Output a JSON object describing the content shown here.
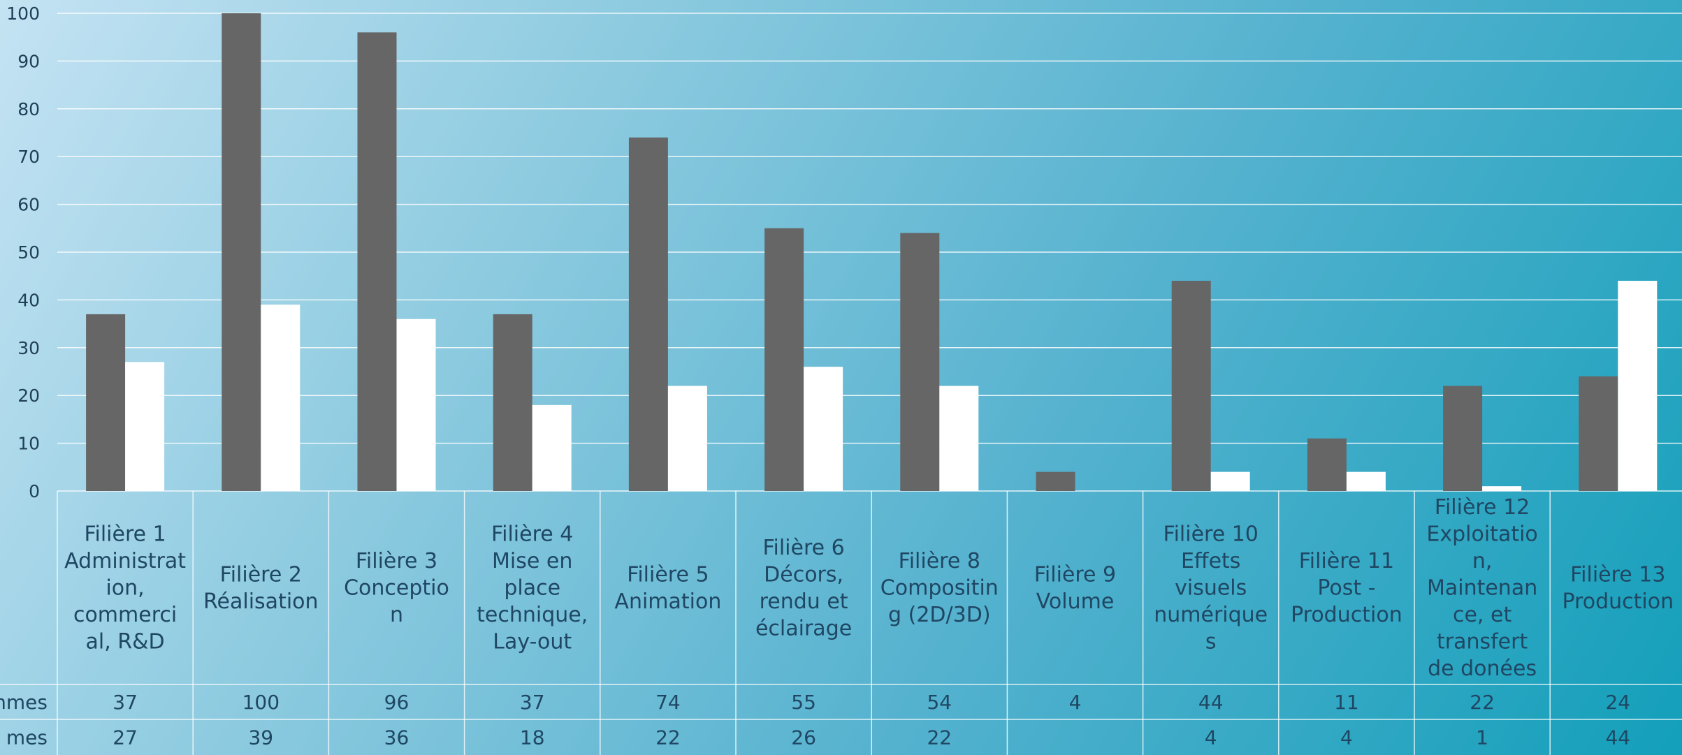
{
  "chart_data": {
    "type": "bar",
    "categories": [
      "Filière 1 Administration, commercial, R&D",
      "Filière 2 Réalisation",
      "Filière 3 Conception",
      "Filière 4 Mise en place technique, Lay-out",
      "Filière 5 Animation",
      "Filière 6 Décors, rendu et éclairage",
      "Filière 8 Compositing (2D/3D)",
      "Filière 9 Volume",
      "Filière 10 Effets visuels numériques",
      "Filière 11 Post - Production",
      "Filière 12 Exploitation, Maintenance, et transfert de donées",
      "Filière 13 Production"
    ],
    "category_lines": [
      [
        "Filière 1",
        "Administrat",
        "ion,",
        "commerci",
        "al, R&D"
      ],
      [
        "Filière 2",
        "Réalisation"
      ],
      [
        "Filière 3",
        "Conceptio",
        "n"
      ],
      [
        "Filière 4",
        "Mise en",
        "place",
        "technique,",
        "Lay-out"
      ],
      [
        "Filière 5",
        "Animation"
      ],
      [
        "Filière 6",
        "Décors,",
        "rendu et",
        "éclairage"
      ],
      [
        "Filière 8",
        "Compositin",
        "g (2D/3D)"
      ],
      [
        "Filière 9",
        "Volume"
      ],
      [
        "Filière 10",
        "Effets",
        "visuels",
        "numérique",
        "s"
      ],
      [
        "Filière 11",
        "Post -",
        "Production"
      ],
      [
        "Filière 12",
        "Exploitatio",
        "n,",
        "Maintenan",
        "ce, et",
        "transfert",
        "de donées"
      ],
      [
        "Filière 13",
        "Production"
      ]
    ],
    "series": [
      {
        "label_visible": "mmes",
        "color": "#666666",
        "values": [
          37,
          100,
          96,
          37,
          74,
          55,
          54,
          4,
          44,
          11,
          22,
          24
        ],
        "table_values": [
          "37",
          "100",
          "96",
          "37",
          "74",
          "55",
          "54",
          "4",
          "44",
          "11",
          "22",
          "24"
        ]
      },
      {
        "label_visible": "mes",
        "color": "#ffffff",
        "values": [
          27,
          39,
          36,
          18,
          22,
          26,
          22,
          0,
          4,
          4,
          1,
          44
        ],
        "table_values": [
          "27",
          "39",
          "36",
          "18",
          "22",
          "26",
          "22",
          "",
          "4",
          "4",
          "1",
          "44"
        ]
      }
    ],
    "yticks": [
      "0",
      "10",
      "20",
      "30",
      "40",
      "50",
      "60",
      "70",
      "80",
      "90",
      "100"
    ],
    "ylim": [
      0,
      100
    ],
    "grid": true,
    "colors": {
      "grid": "#ffffff",
      "text": "#1f4763",
      "tick": "#1f3f57"
    }
  }
}
